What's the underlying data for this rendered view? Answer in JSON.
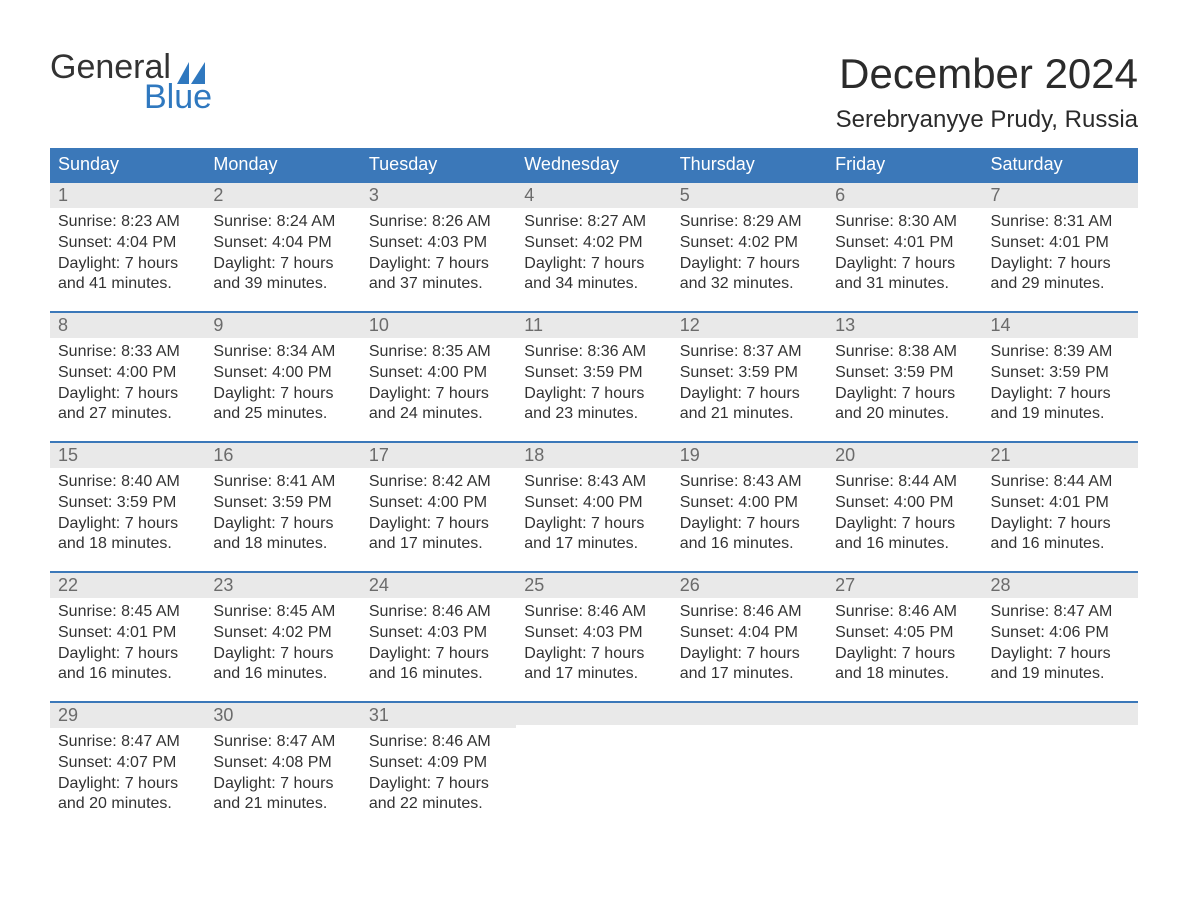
{
  "brand": {
    "word1": "General",
    "word2": "Blue"
  },
  "colors": {
    "accent": "#3b78b9",
    "logo_blue": "#2f78bf",
    "band": "#e9e9e9",
    "text": "#333333",
    "daynum": "#6b6b6b",
    "white": "#ffffff"
  },
  "fonts": {
    "month_title_size_pt": 32,
    "location_size_pt": 18,
    "dow_size_pt": 14,
    "daynum_size_pt": 14,
    "body_size_pt": 12
  },
  "title": "December 2024",
  "location": "Serebryanyye Prudy, Russia",
  "days_of_week": [
    "Sunday",
    "Monday",
    "Tuesday",
    "Wednesday",
    "Thursday",
    "Friday",
    "Saturday"
  ],
  "labels": {
    "sunrise": "Sunrise",
    "sunset": "Sunset",
    "daylight": "Daylight"
  },
  "weeks": [
    [
      {
        "n": 1,
        "sunrise": "8:23 AM",
        "sunset": "4:04 PM",
        "daylight": "7 hours and 41 minutes."
      },
      {
        "n": 2,
        "sunrise": "8:24 AM",
        "sunset": "4:04 PM",
        "daylight": "7 hours and 39 minutes."
      },
      {
        "n": 3,
        "sunrise": "8:26 AM",
        "sunset": "4:03 PM",
        "daylight": "7 hours and 37 minutes."
      },
      {
        "n": 4,
        "sunrise": "8:27 AM",
        "sunset": "4:02 PM",
        "daylight": "7 hours and 34 minutes."
      },
      {
        "n": 5,
        "sunrise": "8:29 AM",
        "sunset": "4:02 PM",
        "daylight": "7 hours and 32 minutes."
      },
      {
        "n": 6,
        "sunrise": "8:30 AM",
        "sunset": "4:01 PM",
        "daylight": "7 hours and 31 minutes."
      },
      {
        "n": 7,
        "sunrise": "8:31 AM",
        "sunset": "4:01 PM",
        "daylight": "7 hours and 29 minutes."
      }
    ],
    [
      {
        "n": 8,
        "sunrise": "8:33 AM",
        "sunset": "4:00 PM",
        "daylight": "7 hours and 27 minutes."
      },
      {
        "n": 9,
        "sunrise": "8:34 AM",
        "sunset": "4:00 PM",
        "daylight": "7 hours and 25 minutes."
      },
      {
        "n": 10,
        "sunrise": "8:35 AM",
        "sunset": "4:00 PM",
        "daylight": "7 hours and 24 minutes."
      },
      {
        "n": 11,
        "sunrise": "8:36 AM",
        "sunset": "3:59 PM",
        "daylight": "7 hours and 23 minutes."
      },
      {
        "n": 12,
        "sunrise": "8:37 AM",
        "sunset": "3:59 PM",
        "daylight": "7 hours and 21 minutes."
      },
      {
        "n": 13,
        "sunrise": "8:38 AM",
        "sunset": "3:59 PM",
        "daylight": "7 hours and 20 minutes."
      },
      {
        "n": 14,
        "sunrise": "8:39 AM",
        "sunset": "3:59 PM",
        "daylight": "7 hours and 19 minutes."
      }
    ],
    [
      {
        "n": 15,
        "sunrise": "8:40 AM",
        "sunset": "3:59 PM",
        "daylight": "7 hours and 18 minutes."
      },
      {
        "n": 16,
        "sunrise": "8:41 AM",
        "sunset": "3:59 PM",
        "daylight": "7 hours and 18 minutes."
      },
      {
        "n": 17,
        "sunrise": "8:42 AM",
        "sunset": "4:00 PM",
        "daylight": "7 hours and 17 minutes."
      },
      {
        "n": 18,
        "sunrise": "8:43 AM",
        "sunset": "4:00 PM",
        "daylight": "7 hours and 17 minutes."
      },
      {
        "n": 19,
        "sunrise": "8:43 AM",
        "sunset": "4:00 PM",
        "daylight": "7 hours and 16 minutes."
      },
      {
        "n": 20,
        "sunrise": "8:44 AM",
        "sunset": "4:00 PM",
        "daylight": "7 hours and 16 minutes."
      },
      {
        "n": 21,
        "sunrise": "8:44 AM",
        "sunset": "4:01 PM",
        "daylight": "7 hours and 16 minutes."
      }
    ],
    [
      {
        "n": 22,
        "sunrise": "8:45 AM",
        "sunset": "4:01 PM",
        "daylight": "7 hours and 16 minutes."
      },
      {
        "n": 23,
        "sunrise": "8:45 AM",
        "sunset": "4:02 PM",
        "daylight": "7 hours and 16 minutes."
      },
      {
        "n": 24,
        "sunrise": "8:46 AM",
        "sunset": "4:03 PM",
        "daylight": "7 hours and 16 minutes."
      },
      {
        "n": 25,
        "sunrise": "8:46 AM",
        "sunset": "4:03 PM",
        "daylight": "7 hours and 17 minutes."
      },
      {
        "n": 26,
        "sunrise": "8:46 AM",
        "sunset": "4:04 PM",
        "daylight": "7 hours and 17 minutes."
      },
      {
        "n": 27,
        "sunrise": "8:46 AM",
        "sunset": "4:05 PM",
        "daylight": "7 hours and 18 minutes."
      },
      {
        "n": 28,
        "sunrise": "8:47 AM",
        "sunset": "4:06 PM",
        "daylight": "7 hours and 19 minutes."
      }
    ],
    [
      {
        "n": 29,
        "sunrise": "8:47 AM",
        "sunset": "4:07 PM",
        "daylight": "7 hours and 20 minutes."
      },
      {
        "n": 30,
        "sunrise": "8:47 AM",
        "sunset": "4:08 PM",
        "daylight": "7 hours and 21 minutes."
      },
      {
        "n": 31,
        "sunrise": "8:46 AM",
        "sunset": "4:09 PM",
        "daylight": "7 hours and 22 minutes."
      },
      null,
      null,
      null,
      null
    ]
  ]
}
